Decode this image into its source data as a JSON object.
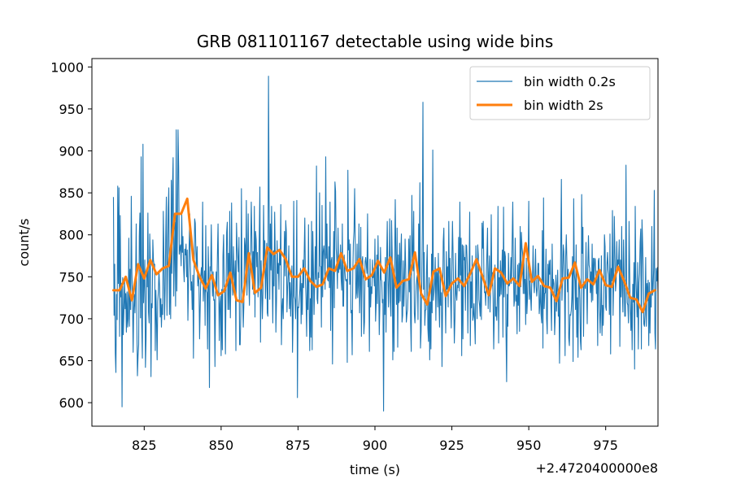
{
  "chart_data": {
    "type": "line",
    "title": "GRB 081101167 detectable using wide bins",
    "xlabel": "time (s)",
    "ylabel": "count/s",
    "x_offset_label": "+2.4720400000e8",
    "xlim": [
      808,
      992
    ],
    "ylim": [
      572,
      1010
    ],
    "xticks": [
      825,
      850,
      875,
      900,
      925,
      950,
      975
    ],
    "yticks": [
      600,
      650,
      700,
      750,
      800,
      850,
      900,
      950,
      1000
    ],
    "grid": false,
    "legend_position": "top-right",
    "colors": {
      "fine": "#1f77b4",
      "wide": "#ff7f0e",
      "axes": "#000000"
    },
    "series": [
      {
        "name": "bin width 0.2s",
        "x_start": 815,
        "x_step": 0.2,
        "values": [
          845,
          704,
          765,
          659,
          636,
          729,
          699,
          858,
          742,
          856,
          679,
          823,
          726,
          742,
          595,
          749,
          681,
          708,
          748,
          712,
          730,
          684,
          732,
          690,
          700,
          796,
          691,
          759,
          711,
          846,
          755,
          723,
          660,
          713,
          729,
          707,
          743,
          813,
          694,
          632,
          656,
          669,
          798,
          826,
          701,
          893,
          692,
          653,
          908,
          719,
          745,
          770,
          642,
          675,
          754,
          738,
          826,
          708,
          695,
          801,
          770,
          631,
          718,
          713,
          794,
          770,
          764,
          765,
          662,
          734,
          699,
          651,
          721,
          732,
          757,
          738,
          702,
          724,
          690,
          717,
          705,
          828,
          775,
          699,
          734,
          798,
          845,
          704,
          761,
          832,
          856,
          705,
          766,
          700,
          865,
          754,
          857,
          892,
          727,
          772,
          815,
          715,
          925,
          733,
          801,
          925,
          880,
          777,
          784,
          788,
          763,
          825,
          779,
          798,
          761,
          744,
          783,
          776,
          789,
          750,
          782,
          698,
          741,
          784,
          825,
          763,
          734,
          744,
          711,
          752,
          653,
          746,
          819,
          814,
          781,
          761,
          786,
          739,
          755,
          741,
          676,
          714,
          751,
          761,
          748,
          839,
          721,
          742,
          757,
          692,
          811,
          733,
          731,
          664,
          786,
          749,
          618,
          762,
          757,
          812,
          757,
          727,
          756,
          722,
          723,
          643,
          730,
          756,
          730,
          776,
          813,
          746,
          674,
          718,
          727,
          656,
          735,
          663,
          775,
          800,
          738,
          737,
          658,
          735,
          803,
          815,
          711,
          778,
          711,
          828,
          701,
          755,
          838,
          742,
          728,
          786,
          753,
          737,
          769,
          662,
          814,
          786,
          773,
          756,
          797,
          669,
          669,
          705,
          855,
          738,
          729,
          690,
          718,
          796,
          787,
          747,
          841,
          728,
          764,
          825,
          745,
          716,
          773,
          780,
          839,
          795,
          735,
          780,
          729,
          834,
          702,
          804,
          794,
          762,
          779,
          726,
          743,
          799,
          857,
          672,
          769,
          737,
          700,
          730,
          835,
          767,
          793,
          724,
          752,
          790,
          707,
          703,
          989,
          838,
          723,
          813,
          758,
          834,
          747,
          695,
          781,
          739,
          827,
          776,
          684,
          722,
          793,
          754,
          766,
          735,
          783,
          764,
          836,
          669,
          713,
          724,
          700,
          760,
          804,
          751,
          817,
          803,
          708,
          735,
          753,
          787,
          712,
          743,
          703,
          734,
          763,
          660,
          702,
          840,
          727,
          723,
          700,
          742,
          841,
          606,
          714,
          713,
          724,
          735,
          760,
          694,
          742,
          705,
          770,
          737,
          777,
          820,
          745,
          723,
          679,
          749,
          711,
          812,
          716,
          662,
          724,
          678,
          816,
          663,
          804,
          759,
          705,
          739,
          786,
          747,
          882,
          724,
          718,
          755,
          749,
          850,
          763,
          762,
          690,
          835,
          726,
          780,
          787,
          774,
          735,
          893,
          772,
          813,
          747,
          745,
          786,
          737,
          839,
          686,
          769,
          773,
          646,
          750,
          804,
          713,
          863,
          852,
          784,
          769,
          736,
          808,
          755,
          770,
          759,
          788,
          748,
          734,
          813,
          715,
          715,
          776,
          759,
          747,
          745,
          747,
          648,
          877,
          782,
          794,
          741,
          789,
          707,
          710,
          657,
          756,
          791,
          804,
          855,
          790,
          724,
          731,
          789,
          725,
          740,
          813,
          707,
          736,
          809,
          679,
          768,
          774,
          743,
          682,
          696,
          768,
          773,
          763,
          754,
          825,
          738,
          748,
          661,
          771,
          714,
          738,
          730,
          770,
          749,
          759,
          739,
          795,
          697,
          718,
          776,
          718,
          799,
          749,
          681,
          717,
          785,
          747,
          745,
          719,
          723,
          590,
          744,
          705,
          773,
          684,
          768,
          816,
          752,
          714,
          748,
          819,
          720,
          703,
          817,
          778,
          651,
          759,
          661,
          772,
          842,
          773,
          717,
          808,
          666,
          776,
          719,
          790,
          721,
          776,
          801,
          696,
          704,
          769,
          715,
          741,
          795,
          760,
          696,
          705,
          711,
          734,
          795,
          732,
          799,
          695,
          661,
          847,
          784,
          757,
          828,
          707,
          695,
          716,
          740,
          748,
          752,
          699,
          813,
          749,
          862,
          665,
          685,
          737,
          806,
          958,
          735,
          779,
          692,
          710,
          711,
          762,
          788,
          689,
          673,
          749,
          651,
          720,
          664,
          777,
          707,
          901,
          722,
          731,
          742,
          773,
          698,
          757,
          754,
          714,
          778,
          722,
          690,
          761,
          716,
          731,
          643,
          722,
          792,
          808,
          741,
          734,
          683,
          780,
          735,
          762,
          714,
          816,
          739,
          772,
          724,
          689,
          766,
          816,
          777,
          723,
          671,
          700,
          778,
          730,
          722,
          740,
          737,
          797,
          733,
          839,
          752,
          796,
          656,
          788,
          676,
          787,
          770,
          773,
          710,
          788,
          787,
          765,
          683,
          753,
          756,
          827,
          668,
          744,
          713,
          775,
          698,
          703,
          718,
          698,
          670,
          787,
          746,
          700,
          788,
          775,
          723,
          716,
          703,
          753,
          699,
          814,
          784,
          816,
          757,
          731,
          732,
          716,
          750,
          779,
          808,
          712,
          751,
          775,
          708,
          741,
          824,
          739,
          755,
          726,
          664,
          706,
          764,
          703,
          714,
          698,
          726,
          834,
          671,
          749,
          727,
          769,
          729,
          748,
          782,
          678,
          833,
          726,
          780,
          774,
          685,
          625,
          729,
          691,
          778,
          739,
          741,
          744,
          773,
          742,
          793,
          839,
          763,
          715,
          723,
          796,
          721,
          728,
          682,
          764,
          716,
          766,
          685,
          810,
          738,
          803,
          785,
          778,
          730,
          779,
          730,
          747,
          693,
          772,
          706,
          726,
          767,
          840,
          723,
          745,
          726,
          710,
          749,
          744,
          787,
          743,
          731,
          751,
          783,
          739,
          727,
          737,
          766,
          766,
          706,
          718,
          740,
          705,
          695,
          805,
          665,
          844,
          712,
          730,
          731,
          783,
          700,
          682,
          765,
          737,
          769,
          753,
          770,
          718,
          686,
          789,
          735,
          747,
          742,
          681,
          702,
          752,
          709,
          740,
          758,
          703,
          731,
          647,
          716,
          789,
          866,
          722,
          752,
          788,
          780,
          741,
          656,
          774,
          800,
          767,
          732,
          759,
          677,
          668,
          705,
          704,
          710,
          726,
          774,
          649,
          843,
          754,
          745,
          711,
          788,
          678,
          725,
          654,
          746,
          744,
          722,
          673,
          663,
          848,
          778,
          809,
          679,
          741,
          744,
          736,
          791,
          739,
          694,
          762,
          799,
          764,
          760,
          731,
          756,
          720,
          789,
          722,
          772,
          742,
          772,
          771,
          755,
          730,
          757,
          668,
          769,
          772,
          714,
          683,
          713,
          775,
          680,
          716,
          692,
          725,
          800,
          786,
          714,
          710,
          764,
          779,
          759,
          753,
          705,
          801,
          658,
          760,
          745,
          829,
          704,
          743,
          822,
          776,
          733,
          745,
          792,
          755,
          770,
          765,
          794,
          667,
          770,
          726,
          810,
          736,
          708,
          794,
          750,
          703,
          703,
          883,
          745,
          719,
          716,
          695,
          816,
          756,
          708,
          686,
          726,
          663,
          741,
          720,
          767,
          640,
          834,
          750,
          729,
          702,
          767,
          664,
          743,
          754,
          791,
          807,
          664,
          818,
          791,
          759,
          694,
          691,
          705,
          773,
          691,
          742,
          722,
          746,
          668,
          743,
          683,
          732,
          714,
          810,
          728,
          735,
          759,
          853,
          683,
          664,
          760,
          745,
          761,
          732,
          705,
          730,
          693,
          720,
          790,
          714,
          734,
          729,
          678,
          761,
          705,
          718,
          803,
          704,
          730,
          714,
          783,
          703,
          716,
          769,
          697
        ]
      },
      {
        "name": "bin width 2s",
        "x": [
          815,
          817,
          819,
          821,
          823,
          825,
          827,
          829,
          831,
          833,
          835,
          837,
          839,
          841,
          843,
          845,
          847,
          849,
          851,
          853,
          855,
          857,
          859,
          861,
          863,
          865,
          867,
          869,
          871,
          873,
          875,
          877,
          879,
          881,
          883,
          885,
          887,
          889,
          891,
          893,
          895,
          897,
          899,
          901,
          903,
          905,
          907,
          909,
          911,
          913,
          915,
          917,
          919,
          921,
          923,
          925,
          927,
          929,
          931,
          933,
          935,
          937,
          939,
          941,
          943,
          945,
          947,
          949,
          951,
          953,
          955,
          957,
          959,
          961,
          963,
          965,
          967,
          969,
          971,
          973,
          975,
          977,
          979,
          981,
          983,
          985,
          987,
          989,
          991
        ],
        "values": [
          734,
          734,
          750,
          722,
          765,
          748,
          770,
          753,
          760,
          763,
          825,
          825,
          843,
          770,
          750,
          736,
          752,
          728,
          733,
          755,
          722,
          720,
          778,
          731,
          737,
          785,
          777,
          782,
          771,
          750,
          750,
          760,
          745,
          738,
          741,
          760,
          757,
          778,
          757,
          760,
          771,
          747,
          752,
          769,
          755,
          773,
          737,
          745,
          747,
          779,
          730,
          717,
          756,
          760,
          727,
          742,
          748,
          739,
          754,
          771,
          750,
          728,
          760,
          755,
          742,
          748,
          739,
          790,
          744,
          751,
          739,
          737,
          721,
          748,
          749,
          767,
          737,
          747,
          741,
          758,
          740,
          738,
          762,
          745,
          725,
          723,
          708,
          730,
          734
        ]
      }
    ]
  }
}
